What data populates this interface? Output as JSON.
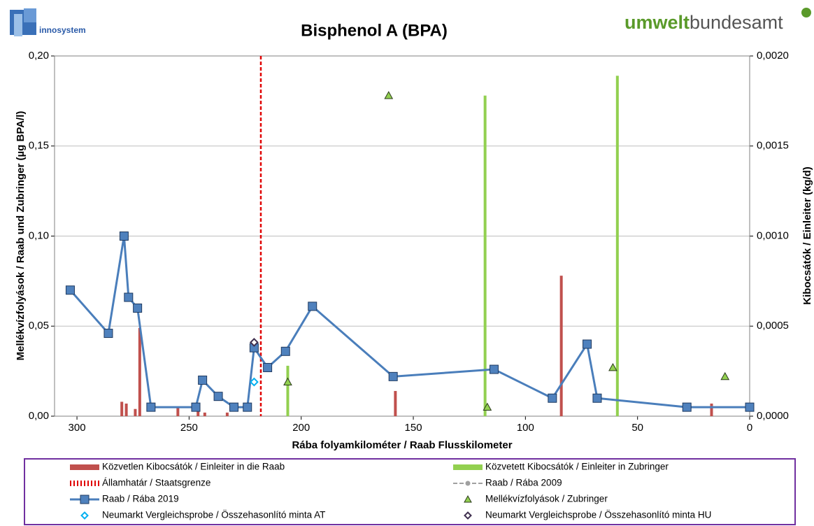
{
  "logo_left": "innosystem",
  "logo_right": {
    "part1": "umwelt",
    "part2": "bundesamt"
  },
  "chart_data": {
    "type": "combo",
    "title": "Bisphenol A (BPA)",
    "x_label": "Rába folyamkilométer / Raab Flusskilometer",
    "y_label": "Mellékvízfolyások / Raab und Zubringer (µg BPA/l)",
    "y2_label": "Kibocsátók / Einleiter (kg/d)",
    "xlim": [
      310,
      0
    ],
    "xticks": [
      300,
      250,
      200,
      150,
      100,
      50,
      0
    ],
    "ylim": [
      0,
      0.2
    ],
    "yticks": [
      {
        "value": 0,
        "label": "0,00"
      },
      {
        "value": 0.05,
        "label": "0,05"
      },
      {
        "value": 0.1,
        "label": "0,10"
      },
      {
        "value": 0.15,
        "label": "0,15"
      },
      {
        "value": 0.2,
        "label": "0,20"
      }
    ],
    "y2lim": [
      0,
      0.002
    ],
    "y2ticks": [
      {
        "value": 0,
        "label": "0,0000"
      },
      {
        "value": 0.0005,
        "label": "0,0005"
      },
      {
        "value": 0.001,
        "label": "0,0010"
      },
      {
        "value": 0.0015,
        "label": "0,0015"
      },
      {
        "value": 0.002,
        "label": "0,0020"
      }
    ],
    "grid": true,
    "series": [
      {
        "name": "Közvetlen Kibocsátók / Einleiter in die Raab",
        "type": "bar",
        "axis": "y2",
        "color": "#c0504d",
        "x": [
          280,
          278,
          274,
          272,
          255,
          246,
          243,
          233,
          158,
          84,
          17
        ],
        "values": [
          8e-05,
          7e-05,
          4e-05,
          0.00049,
          5e-05,
          3e-05,
          2e-05,
          2e-05,
          0.00014,
          0.00078,
          7e-05
        ]
      },
      {
        "name": "Közvetett Kibocsátók / Einleiter in Zubringer",
        "type": "bar",
        "axis": "y2",
        "color": "#92d050",
        "x": [
          206,
          118,
          59
        ],
        "values": [
          0.00028,
          0.00178,
          0.00189
        ]
      },
      {
        "name": "Államhatár / Staatsgrenze",
        "type": "vline",
        "color": "#e00000",
        "x": [
          218
        ]
      },
      {
        "name": "Raab / Rába 2009",
        "type": "line",
        "color": "#a0a0a0",
        "x": [],
        "values": []
      },
      {
        "name": "Raab / Rába 2019",
        "type": "line",
        "color": "#4a7ebb",
        "marker_color": "#4f81bd",
        "x": [
          303,
          286,
          279,
          277,
          273,
          267,
          247,
          244,
          237,
          230,
          224,
          221,
          215,
          207,
          195,
          159,
          114,
          88,
          72.5,
          68,
          28,
          0
        ],
        "values": [
          0.07,
          0.046,
          0.1,
          0.066,
          0.06,
          0.005,
          0.005,
          0.02,
          0.011,
          0.005,
          0.005,
          0.038,
          0.027,
          0.036,
          0.061,
          0.022,
          0.026,
          0.01,
          0.04,
          0.01,
          0.005,
          0.005
        ]
      },
      {
        "name": "Mellékvízfolyások / Zubringer",
        "type": "triangle",
        "color": "#92d050",
        "x": [
          161,
          206,
          117,
          61,
          11
        ],
        "values": [
          0.178,
          0.019,
          0.005,
          0.027,
          0.022
        ]
      },
      {
        "name": "Neumarkt Vergleichsprobe / Összehasonlító minta AT",
        "type": "diamond",
        "color": "#00b0f0",
        "x": [
          221
        ],
        "values": [
          0.019
        ]
      },
      {
        "name": "Neumarkt Vergleichsprobe / Összehasonlító minta HU",
        "type": "diamond",
        "color": "#403050",
        "x": [
          221
        ],
        "values": [
          0.041
        ]
      }
    ]
  }
}
